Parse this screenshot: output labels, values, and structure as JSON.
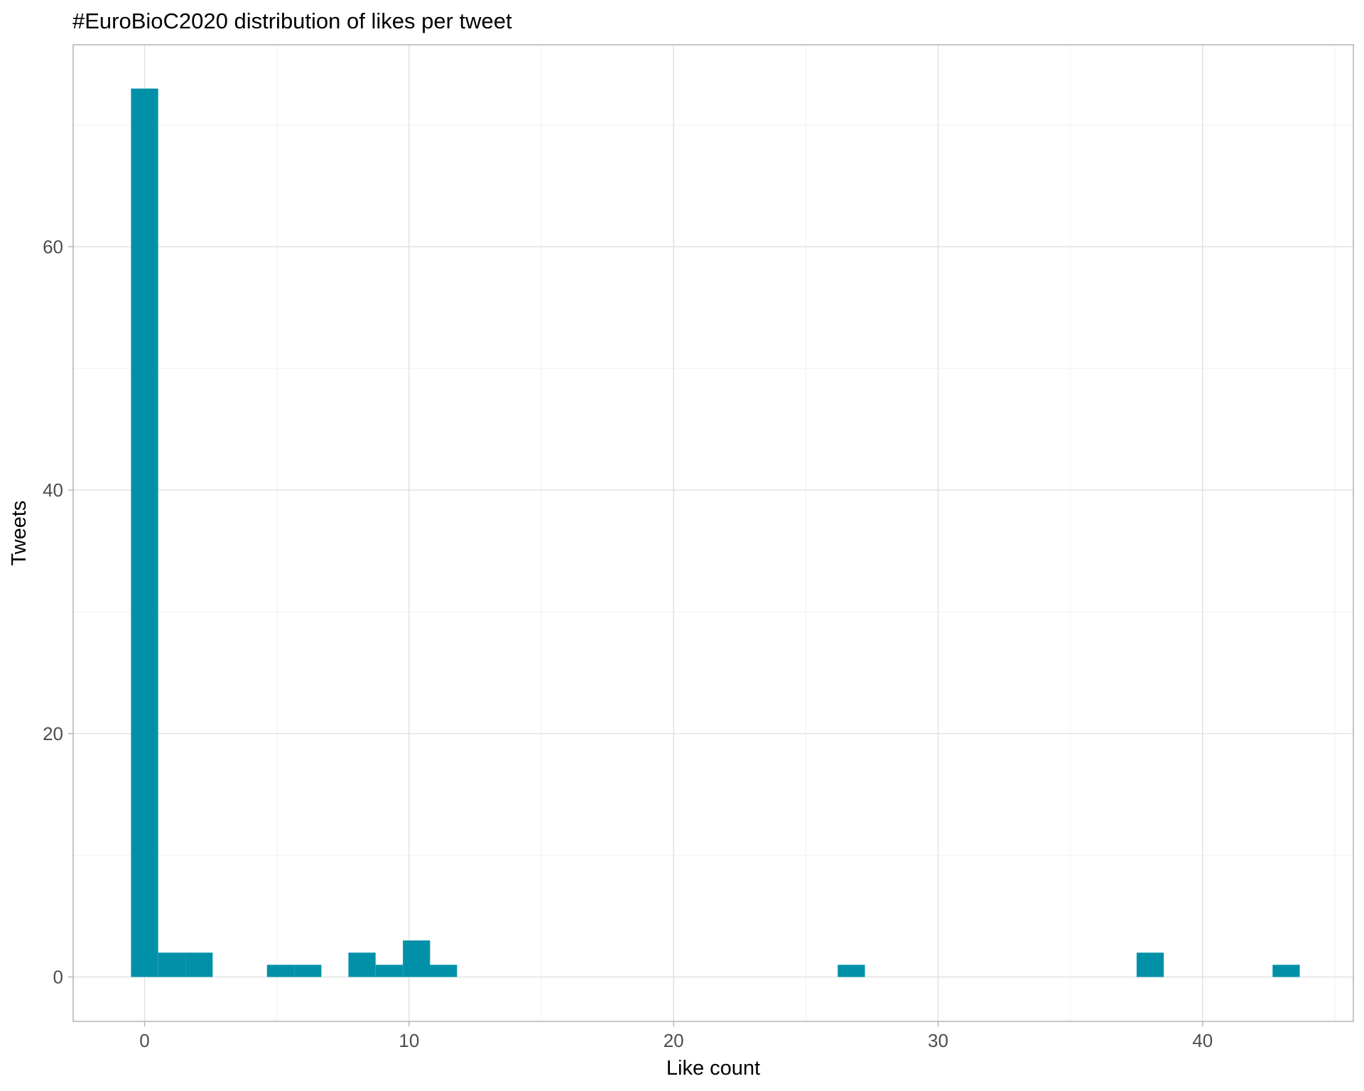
{
  "chart_data": {
    "type": "bar",
    "title": "#EuroBioC2020 distribution of likes per tweet",
    "xlabel": "Like count",
    "ylabel": "Tweets",
    "xlim": [
      -2.7,
      45.7
    ],
    "ylim": [
      -3.65,
      76.6
    ],
    "x_ticks": [
      0,
      10,
      20,
      30,
      40
    ],
    "x_minor_ticks": [
      5,
      15,
      25,
      35,
      45
    ],
    "y_ticks": [
      0,
      20,
      40,
      60
    ],
    "y_minor_ticks": [
      10,
      30,
      50,
      70
    ],
    "bin_width": 1.0276,
    "bins": [
      {
        "x": 0.0,
        "count": 73
      },
      {
        "x": 1.03,
        "count": 2
      },
      {
        "x": 2.06,
        "count": 2
      },
      {
        "x": 5.14,
        "count": 1
      },
      {
        "x": 6.17,
        "count": 1
      },
      {
        "x": 8.22,
        "count": 2
      },
      {
        "x": 9.25,
        "count": 1
      },
      {
        "x": 10.28,
        "count": 3
      },
      {
        "x": 11.3,
        "count": 1
      },
      {
        "x": 26.72,
        "count": 1
      },
      {
        "x": 38.02,
        "count": 2
      },
      {
        "x": 43.16,
        "count": 1
      }
    ],
    "bar_color": "#0091A8",
    "grid": true,
    "legend": "none"
  }
}
